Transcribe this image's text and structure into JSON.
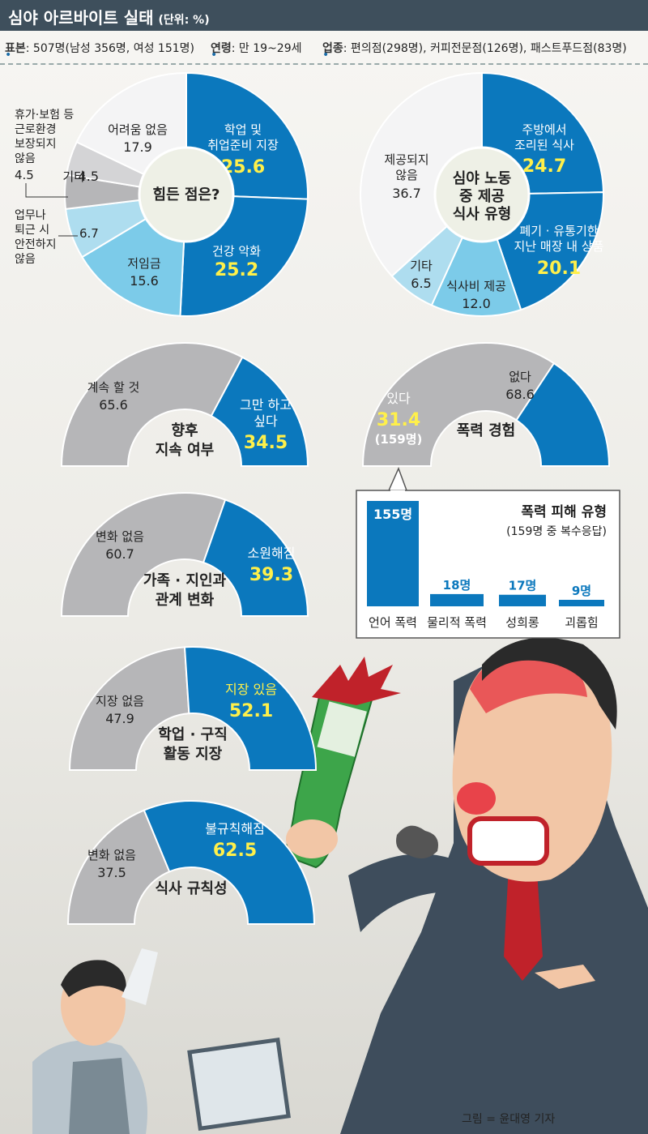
{
  "header": {
    "title": "심야 아르바이트 실태",
    "unit": "(단위: %)"
  },
  "info": [
    {
      "label": "표본",
      "text": ": 507명(남성 356명, 여성 151명)"
    },
    {
      "label": "연령",
      "text": ": 만 19~29세"
    },
    {
      "label": "업종",
      "text": ": 편의점(298명), 커피전문점(126명), 패스트푸드점(83명)"
    }
  ],
  "credit": "그림 = 윤대영 기자",
  "colors": {
    "dark": "#0b78bd",
    "light": "#7ccbe9",
    "pale": "#aeddef",
    "gray": "#b6b6b8",
    "lightgray": "#d4d4d6",
    "white": "#f4f4f5",
    "yellow": "#fff04a"
  },
  "chart_data": [
    {
      "type": "pie",
      "title": "힘든 점은?",
      "slices": [
        {
          "label": "학업 및 취업준비 지장",
          "value": 25.6,
          "value_text": "25.6"
        },
        {
          "label": "건강 악화",
          "value": 25.2,
          "value_text": "25.2"
        },
        {
          "label": "저임금",
          "value": 15.6,
          "value_text": "15.6"
        },
        {
          "label": "업무나 퇴근 시 안전하지 않음",
          "value": 6.7,
          "value_text": "6.7"
        },
        {
          "label": "휴가·보험 등 근로환경 보장되지 않음",
          "value": 4.5,
          "value_text": "4.5"
        },
        {
          "label": "기타",
          "value": 4.5,
          "value_text": "4.5"
        },
        {
          "label": "어려움 없음",
          "value": 17.9,
          "value_text": "17.9"
        }
      ]
    },
    {
      "type": "pie",
      "title": "심야 노동 중 제공 식사 유형",
      "slices": [
        {
          "label": "주방에서 조리된 식사",
          "value": 24.7,
          "value_text": "24.7"
        },
        {
          "label": "폐기·유통기한 지난 매장 내 상품",
          "value": 20.1,
          "value_text": "20.1"
        },
        {
          "label": "식사비 제공",
          "value": 12.0,
          "value_text": "12.0"
        },
        {
          "label": "기타",
          "value": 6.5,
          "value_text": "6.5"
        },
        {
          "label": "제공되지 않음",
          "value": 36.7,
          "value_text": "36.7"
        }
      ]
    },
    {
      "type": "pie",
      "title": "향후 지속 여부",
      "slices": [
        {
          "label": "계속 할 것",
          "value": 65.6,
          "value_text": "65.6"
        },
        {
          "label": "그만 하고 싶다",
          "value": 34.5,
          "value_text": "34.5"
        }
      ]
    },
    {
      "type": "pie",
      "title": "폭력 경험",
      "slices": [
        {
          "label": "있다",
          "value": 31.4,
          "value_text": "31.4",
          "note": "(159명)"
        },
        {
          "label": "없다",
          "value": 68.6,
          "value_text": "68.6"
        }
      ]
    },
    {
      "type": "pie",
      "title": "가족·지인과 관계 변화",
      "slices": [
        {
          "label": "변화 없음",
          "value": 60.7,
          "value_text": "60.7"
        },
        {
          "label": "소원해짐",
          "value": 39.3,
          "value_text": "39.3"
        }
      ]
    },
    {
      "type": "pie",
      "title": "학업·구직 활동 지장",
      "slices": [
        {
          "label": "지장 없음",
          "value": 47.9,
          "value_text": "47.9"
        },
        {
          "label": "지장 있음",
          "value": 52.1,
          "value_text": "52.1"
        }
      ]
    },
    {
      "type": "pie",
      "title": "식사 규칙성",
      "slices": [
        {
          "label": "변화 없음",
          "value": 37.5,
          "value_text": "37.5"
        },
        {
          "label": "불규칙해짐",
          "value": 62.5,
          "value_text": "62.5"
        }
      ]
    },
    {
      "type": "bar",
      "title": "폭력 피해 유형",
      "subtitle": "(159명 중 복수응답)",
      "categories": [
        "언어 폭력",
        "물리적 폭력",
        "성희롱",
        "괴롭힘"
      ],
      "values": [
        155,
        18,
        17,
        9
      ],
      "value_labels": [
        "155명",
        "18명",
        "17명",
        "9명"
      ]
    }
  ]
}
